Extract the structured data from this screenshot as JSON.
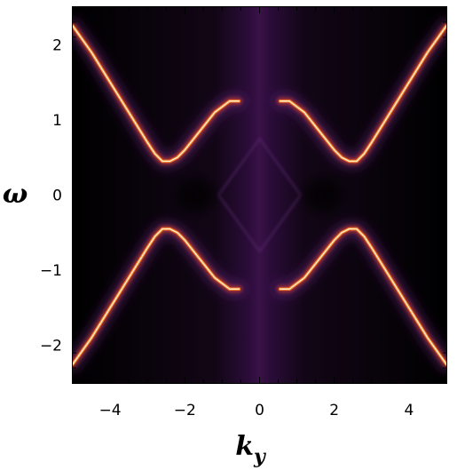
{
  "chart_data": {
    "type": "heatmap",
    "title": "",
    "xlabel": "k",
    "xlabel_sub": "y",
    "ylabel": "ω",
    "xlim": [
      -5,
      5
    ],
    "ylim": [
      -2.5,
      2.5
    ],
    "x_ticks": [
      -4,
      -2,
      0,
      2,
      4
    ],
    "y_ticks": [
      -2,
      -1,
      0,
      1,
      2
    ],
    "x_tick_labels": [
      "−4",
      "−2",
      "0",
      "2",
      "4"
    ],
    "y_tick_labels": [
      "−2",
      "−1",
      "0",
      "1",
      "2"
    ],
    "grid": false,
    "colormap": [
      "#000000",
      "#2a0a35",
      "#5a1d6e",
      "#a0308a",
      "#e8572f",
      "#ffb347",
      "#fff6d5"
    ],
    "bands": [
      {
        "name": "",
        "x": [
          -5.0,
          -4.5,
          -4.0,
          -3.5,
          -3.0,
          -2.8,
          -2.6,
          -2.4,
          -2.2,
          -2.0,
          -1.6,
          -1.2,
          -0.8,
          -0.55
        ],
        "y": [
          2.25,
          1.9,
          1.5,
          1.1,
          0.7,
          0.55,
          0.45,
          0.45,
          0.5,
          0.6,
          0.85,
          1.1,
          1.25,
          1.25
        ]
      },
      {
        "name": "",
        "x": [
          0.55,
          0.8,
          1.2,
          1.6,
          2.0,
          2.2,
          2.4,
          2.6,
          2.8,
          3.0,
          3.5,
          4.0,
          4.5,
          5.0
        ],
        "y": [
          1.25,
          1.25,
          1.1,
          0.85,
          0.6,
          0.5,
          0.45,
          0.45,
          0.55,
          0.7,
          1.1,
          1.5,
          1.9,
          2.25
        ]
      },
      {
        "name": "",
        "x": [
          -5.0,
          -4.5,
          -4.0,
          -3.5,
          -3.0,
          -2.8,
          -2.6,
          -2.4,
          -2.2,
          -2.0,
          -1.6,
          -1.2,
          -0.8,
          -0.55
        ],
        "y": [
          -2.25,
          -1.9,
          -1.5,
          -1.1,
          -0.7,
          -0.55,
          -0.45,
          -0.45,
          -0.5,
          -0.6,
          -0.85,
          -1.1,
          -1.25,
          -1.25
        ]
      },
      {
        "name": "",
        "x": [
          0.55,
          0.8,
          1.2,
          1.6,
          2.0,
          2.2,
          2.4,
          2.6,
          2.8,
          3.0,
          3.5,
          4.0,
          4.5,
          5.0
        ],
        "y": [
          -1.25,
          -1.25,
          -1.1,
          -0.85,
          -0.6,
          -0.5,
          -0.45,
          -0.45,
          -0.55,
          -0.7,
          -1.1,
          -1.5,
          -1.9,
          -2.25
        ]
      }
    ],
    "diamond_corners": {
      "x": [
        -1.1,
        0,
        1.1,
        0
      ],
      "y": [
        0,
        0.75,
        0,
        -0.75
      ]
    }
  }
}
